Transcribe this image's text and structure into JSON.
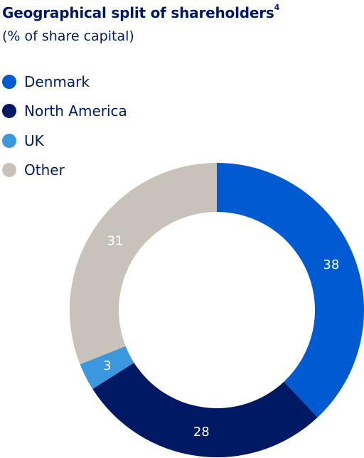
{
  "chart_data": {
    "type": "pie",
    "title": "Geographical split of shareholders",
    "title_footnote": "4",
    "subtitle": "(% of share capital)",
    "categories": [
      "Denmark",
      "North America",
      "UK",
      "Other"
    ],
    "values": [
      38,
      28,
      3,
      31
    ],
    "colors": [
      "#005ad2",
      "#001965",
      "#3b97de",
      "#c9c2bb"
    ],
    "legend_position": "top-left",
    "donut": true
  }
}
